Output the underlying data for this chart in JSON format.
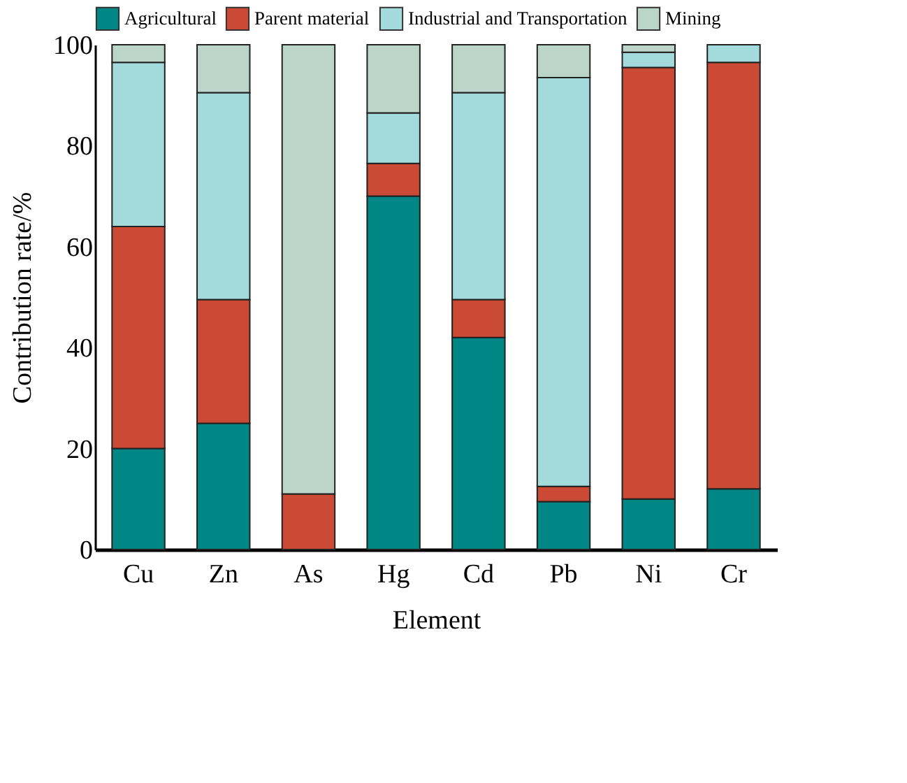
{
  "chart_data": {
    "type": "bar",
    "stacked": true,
    "xlabel": "Element",
    "ylabel": "Contribution rate/%",
    "categories": [
      "Cu",
      "Zn",
      "As",
      "Hg",
      "Cd",
      "Pb",
      "Ni",
      "Cr"
    ],
    "series": [
      {
        "name": "Agricultural",
        "color": "#008684",
        "values": [
          20,
          25,
          0,
          70,
          42,
          9.5,
          10,
          12
        ]
      },
      {
        "name": "Parent material",
        "color": "#cb4a36",
        "values": [
          44,
          24.5,
          11,
          6.5,
          7.5,
          3,
          85.5,
          84.5
        ]
      },
      {
        "name": "Industrial and Transportation",
        "color": "#a3dadb",
        "values": [
          32.5,
          41,
          0,
          10,
          41,
          81,
          3,
          3.5
        ]
      },
      {
        "name": "Mining",
        "color": "#bcd5cb",
        "values": [
          3.5,
          9.5,
          89,
          13.5,
          9.5,
          6.5,
          1.5,
          0
        ]
      }
    ],
    "ylim": [
      0,
      100
    ],
    "yticks": [
      0,
      20,
      40,
      60,
      80,
      100
    ],
    "grid": false,
    "legend": "top"
  }
}
